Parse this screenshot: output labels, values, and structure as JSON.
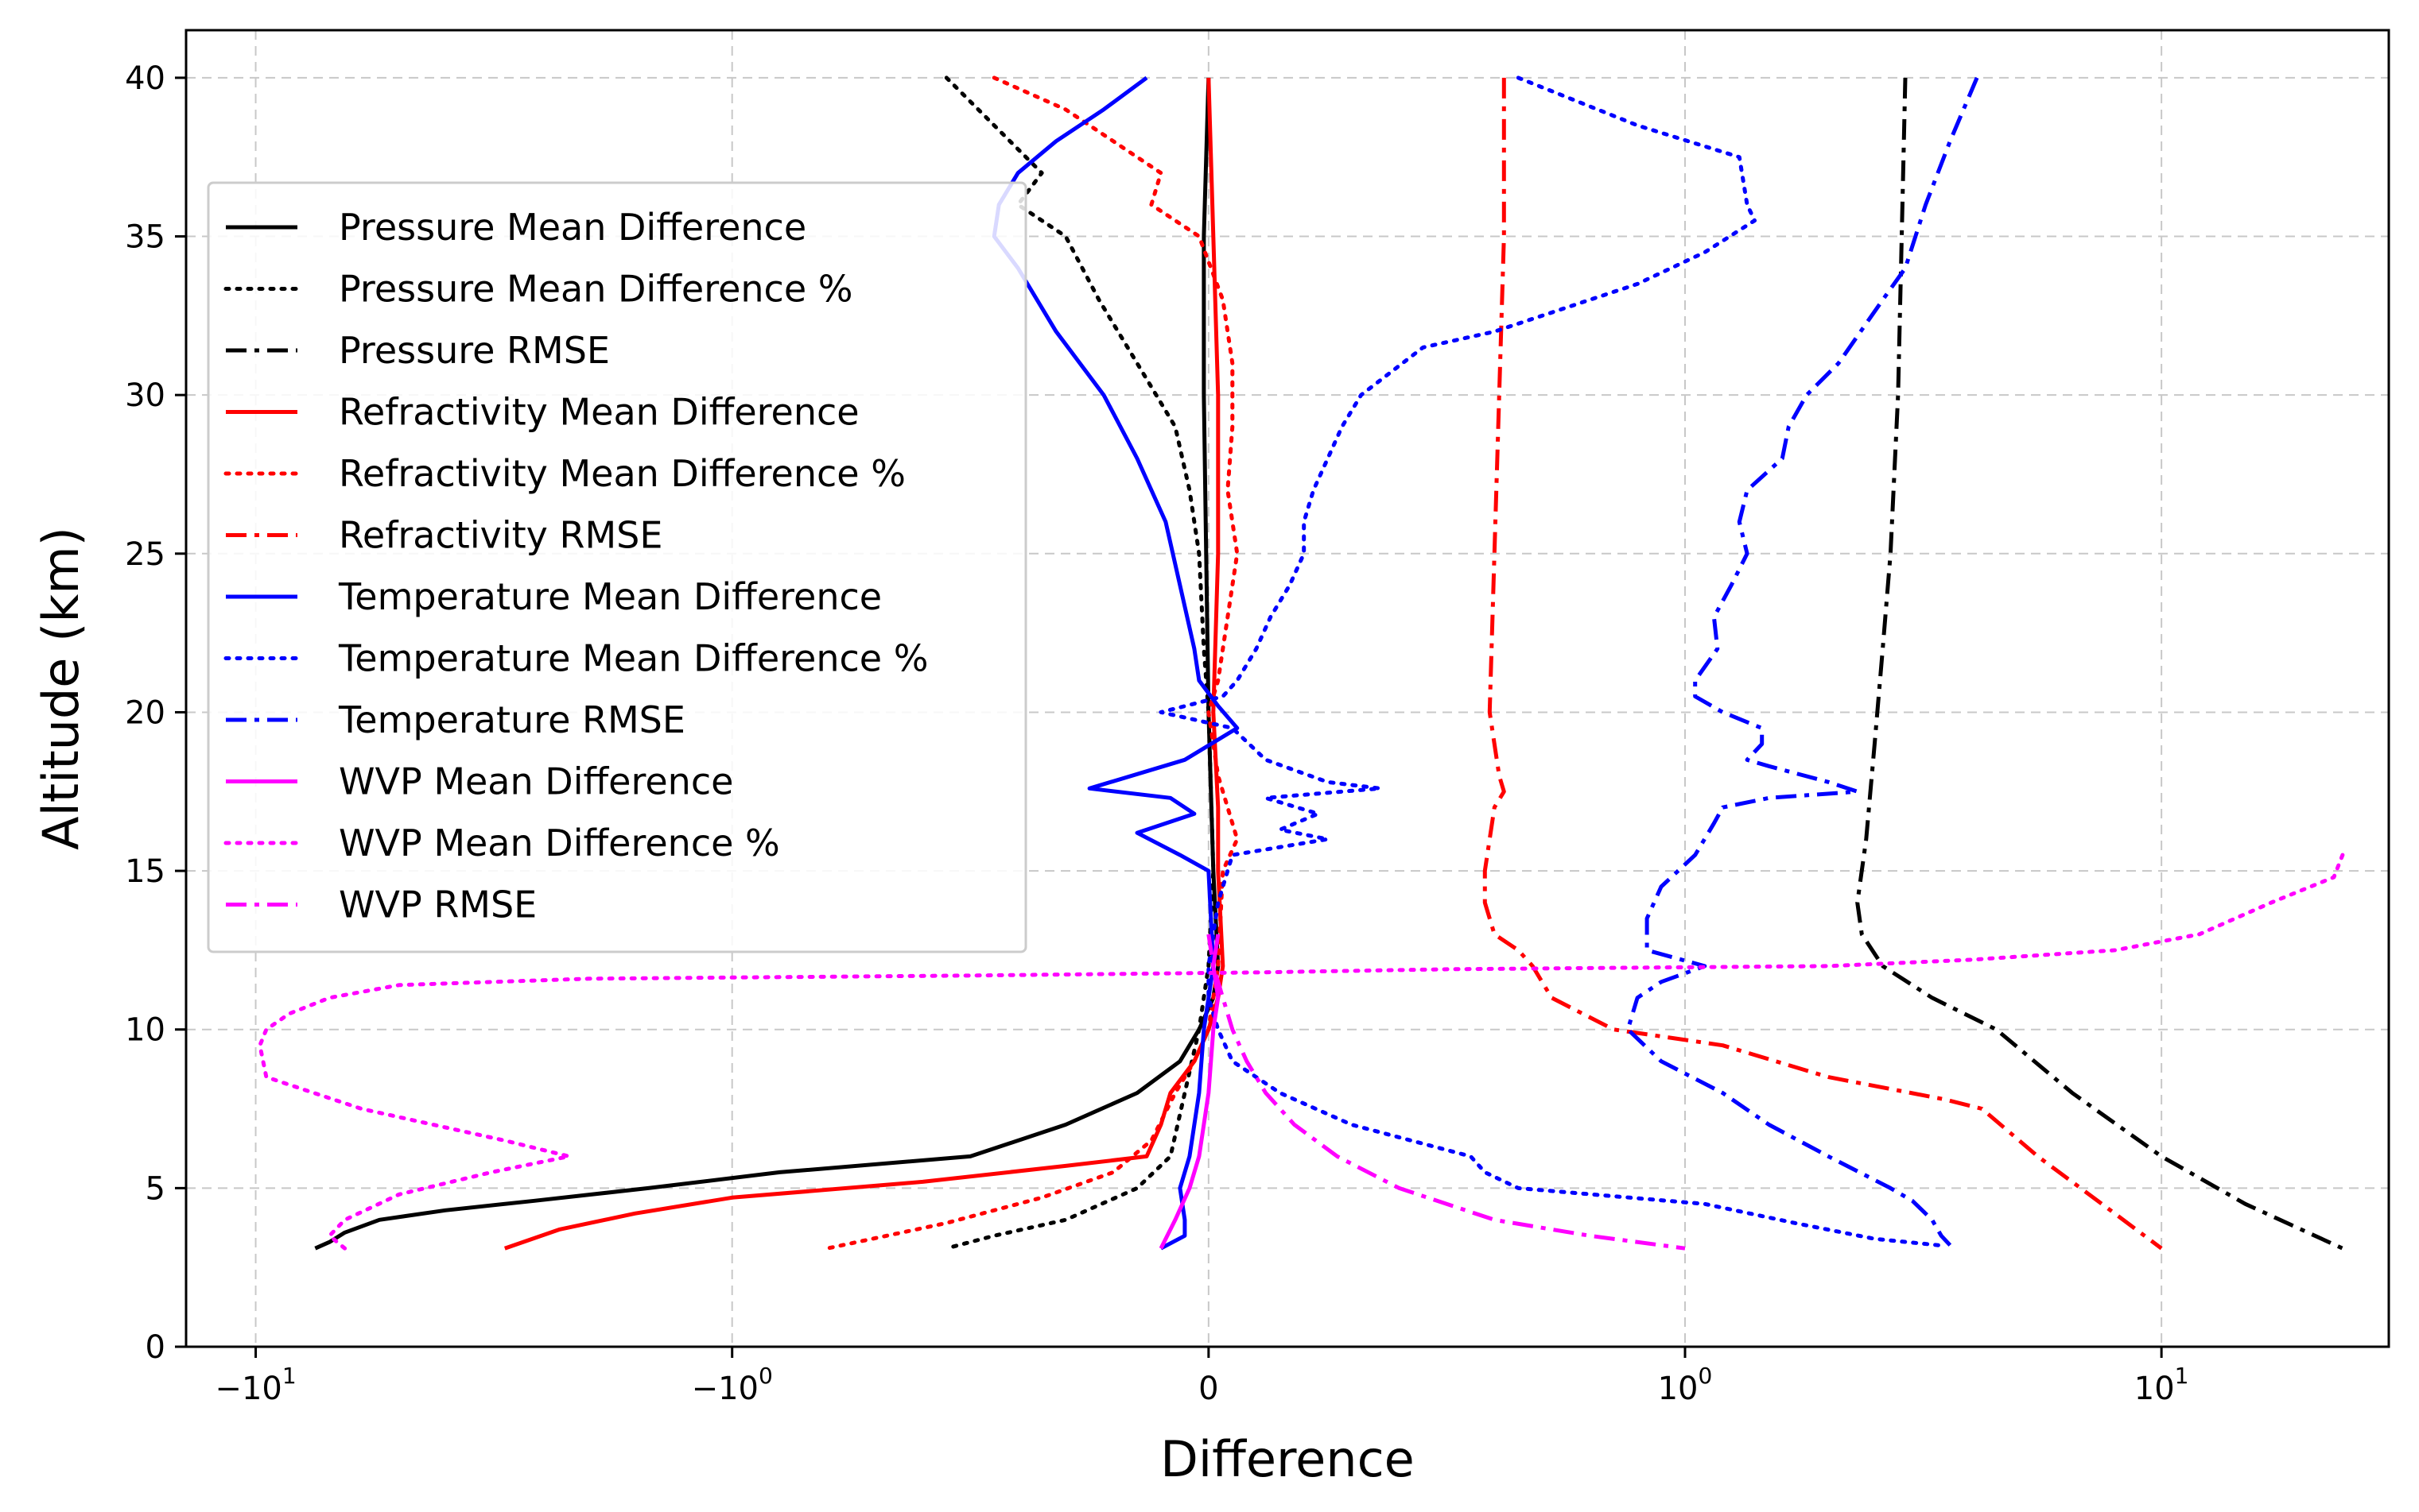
{
  "chart_data": {
    "type": "line",
    "xlabel": "Difference",
    "ylabel": "Altitude (km)",
    "x_scale": "symlog",
    "x_linthresh": 1,
    "xlim": [
      -14,
      30
    ],
    "ylim": [
      0,
      41.5
    ],
    "grid": true,
    "legend_position": "upper-left",
    "x_ticks": [
      {
        "value": -10,
        "base": "−10",
        "exp": "1"
      },
      {
        "value": -1,
        "base": "−10",
        "exp": "0"
      },
      {
        "value": 0,
        "base": "0",
        "exp": ""
      },
      {
        "value": 1,
        "base": "10",
        "exp": "0"
      },
      {
        "value": 10,
        "base": "10",
        "exp": "1"
      }
    ],
    "y_ticks": [
      0,
      5,
      10,
      15,
      20,
      25,
      30,
      35,
      40
    ],
    "series": [
      {
        "name": "Pressure Mean Difference",
        "color": "#000000",
        "style": "solid",
        "points": [
          [
            0.0,
            40
          ],
          [
            -0.01,
            35
          ],
          [
            -0.01,
            30
          ],
          [
            -0.005,
            25
          ],
          [
            0.0,
            20
          ],
          [
            0.01,
            15
          ],
          [
            0.02,
            12
          ],
          [
            0.01,
            11
          ],
          [
            -0.02,
            10
          ],
          [
            -0.06,
            9
          ],
          [
            -0.15,
            8
          ],
          [
            -0.3,
            7
          ],
          [
            -0.5,
            6
          ],
          [
            -0.9,
            5.5
          ],
          [
            -1.5,
            5
          ],
          [
            -2.6,
            4.6
          ],
          [
            -4.0,
            4.3
          ],
          [
            -5.5,
            4.0
          ],
          [
            -6.5,
            3.6
          ],
          [
            -7.0,
            3.3
          ],
          [
            -7.5,
            3.1
          ]
        ]
      },
      {
        "name": "Pressure Mean Difference %",
        "color": "#000000",
        "style": "dotted",
        "points": [
          [
            -0.55,
            40
          ],
          [
            -0.45,
            38.5
          ],
          [
            -0.35,
            37
          ],
          [
            -0.4,
            36
          ],
          [
            -0.3,
            35
          ],
          [
            -0.23,
            33
          ],
          [
            -0.15,
            31
          ],
          [
            -0.07,
            29
          ],
          [
            -0.04,
            27
          ],
          [
            -0.02,
            25
          ],
          [
            -0.01,
            22
          ],
          [
            0.0,
            20
          ],
          [
            0.01,
            15
          ],
          [
            0.0,
            12
          ],
          [
            -0.02,
            10
          ],
          [
            -0.05,
            8
          ],
          [
            -0.08,
            6
          ],
          [
            -0.15,
            5
          ],
          [
            -0.3,
            4
          ],
          [
            -0.45,
            3.5
          ],
          [
            -0.55,
            3.1
          ]
        ]
      },
      {
        "name": "Pressure RMSE",
        "color": "#000000",
        "style": "dashdot",
        "points": [
          [
            2.9,
            40
          ],
          [
            2.85,
            35
          ],
          [
            2.8,
            30
          ],
          [
            2.7,
            25
          ],
          [
            2.6,
            22
          ],
          [
            2.5,
            19
          ],
          [
            2.4,
            16
          ],
          [
            2.3,
            14
          ],
          [
            2.35,
            13
          ],
          [
            2.6,
            12
          ],
          [
            3.3,
            11
          ],
          [
            4.5,
            10
          ],
          [
            6.5,
            8
          ],
          [
            10,
            6
          ],
          [
            15,
            4.5
          ],
          [
            24,
            3.1
          ]
        ]
      },
      {
        "name": "Refractivity Mean Difference",
        "color": "#ff0000",
        "style": "solid",
        "points": [
          [
            0.0,
            40
          ],
          [
            0.01,
            35
          ],
          [
            0.02,
            30
          ],
          [
            0.02,
            25
          ],
          [
            0.01,
            20
          ],
          [
            0.02,
            17
          ],
          [
            0.02,
            15
          ],
          [
            0.03,
            12
          ],
          [
            0.02,
            11
          ],
          [
            0.0,
            10
          ],
          [
            -0.03,
            9
          ],
          [
            -0.08,
            8
          ],
          [
            -0.1,
            7
          ],
          [
            -0.13,
            6
          ],
          [
            -0.3,
            5.7
          ],
          [
            -0.6,
            5.2
          ],
          [
            -1.0,
            4.7
          ],
          [
            -1.6,
            4.2
          ],
          [
            -2.3,
            3.7
          ],
          [
            -3.0,
            3.1
          ]
        ]
      },
      {
        "name": "Refractivity Mean Difference %",
        "color": "#ff0000",
        "style": "dotted",
        "points": [
          [
            -0.45,
            40
          ],
          [
            -0.3,
            39
          ],
          [
            -0.2,
            38
          ],
          [
            -0.1,
            37
          ],
          [
            -0.12,
            36
          ],
          [
            -0.02,
            35
          ],
          [
            0.03,
            33
          ],
          [
            0.05,
            31
          ],
          [
            0.05,
            29
          ],
          [
            0.04,
            27
          ],
          [
            0.06,
            25
          ],
          [
            0.04,
            23
          ],
          [
            0.02,
            21
          ],
          [
            0.0,
            20
          ],
          [
            0.02,
            18
          ],
          [
            0.06,
            16
          ],
          [
            0.03,
            15
          ],
          [
            0.02,
            12
          ],
          [
            0.0,
            10
          ],
          [
            -0.03,
            9
          ],
          [
            -0.07,
            8
          ],
          [
            -0.12,
            6.5
          ],
          [
            -0.2,
            5.5
          ],
          [
            -0.35,
            4.7
          ],
          [
            -0.55,
            3.9
          ],
          [
            -0.8,
            3.1
          ]
        ]
      },
      {
        "name": "Refractivity RMSE",
        "color": "#ff0000",
        "style": "dashdot",
        "points": [
          [
            0.62,
            40
          ],
          [
            0.62,
            35
          ],
          [
            0.61,
            30
          ],
          [
            0.6,
            25
          ],
          [
            0.59,
            20
          ],
          [
            0.61,
            18
          ],
          [
            0.62,
            17.5
          ],
          [
            0.6,
            17
          ],
          [
            0.58,
            15
          ],
          [
            0.58,
            14
          ],
          [
            0.6,
            13
          ],
          [
            0.65,
            12.5
          ],
          [
            0.68,
            12
          ],
          [
            0.72,
            11
          ],
          [
            0.85,
            10
          ],
          [
            1.2,
            9.5
          ],
          [
            2.0,
            8.5
          ],
          [
            3.5,
            7.8
          ],
          [
            4.2,
            7.5
          ],
          [
            5.5,
            6
          ],
          [
            7.5,
            4.5
          ],
          [
            10,
            3.1
          ]
        ]
      },
      {
        "name": "Temperature Mean Difference",
        "color": "#0000ff",
        "style": "solid",
        "points": [
          [
            -0.13,
            40
          ],
          [
            -0.22,
            39
          ],
          [
            -0.32,
            38
          ],
          [
            -0.4,
            37
          ],
          [
            -0.44,
            36
          ],
          [
            -0.45,
            35
          ],
          [
            -0.4,
            34
          ],
          [
            -0.32,
            32
          ],
          [
            -0.22,
            30
          ],
          [
            -0.15,
            28
          ],
          [
            -0.09,
            26
          ],
          [
            -0.06,
            24
          ],
          [
            -0.03,
            22
          ],
          [
            -0.02,
            21
          ],
          [
            0.02,
            20.2
          ],
          [
            0.06,
            19.5
          ],
          [
            -0.05,
            18.5
          ],
          [
            -0.25,
            17.6
          ],
          [
            -0.08,
            17.3
          ],
          [
            -0.03,
            16.8
          ],
          [
            -0.15,
            16.2
          ],
          [
            -0.06,
            15.5
          ],
          [
            0.0,
            15
          ],
          [
            0.01,
            12
          ],
          [
            -0.01,
            10
          ],
          [
            -0.02,
            8
          ],
          [
            -0.04,
            6
          ],
          [
            -0.06,
            5
          ],
          [
            -0.05,
            4
          ],
          [
            -0.05,
            3.5
          ],
          [
            -0.1,
            3.1
          ]
        ]
      },
      {
        "name": "Temperature Mean Difference %",
        "color": "#0000ff",
        "style": "dotted",
        "points": [
          [
            0.65,
            40
          ],
          [
            0.9,
            38.5
          ],
          [
            1.3,
            37.5
          ],
          [
            1.35,
            36
          ],
          [
            1.4,
            35.5
          ],
          [
            1.1,
            34.5
          ],
          [
            0.9,
            33.5
          ],
          [
            0.6,
            32
          ],
          [
            0.45,
            31.5
          ],
          [
            0.32,
            30
          ],
          [
            0.28,
            29
          ],
          [
            0.22,
            27
          ],
          [
            0.2,
            26
          ],
          [
            0.2,
            25
          ],
          [
            0.17,
            24
          ],
          [
            0.13,
            23
          ],
          [
            0.1,
            22
          ],
          [
            0.06,
            21
          ],
          [
            0.03,
            20.5
          ],
          [
            -0.1,
            20
          ],
          [
            0.05,
            19.5
          ],
          [
            0.12,
            18.5
          ],
          [
            0.25,
            17.8
          ],
          [
            0.36,
            17.6
          ],
          [
            0.12,
            17.3
          ],
          [
            0.23,
            16.8
          ],
          [
            0.15,
            16.3
          ],
          [
            0.25,
            16
          ],
          [
            0.05,
            15.5
          ],
          [
            0.02,
            14
          ],
          [
            0.0,
            12
          ],
          [
            0.0,
            11
          ],
          [
            0.02,
            10
          ],
          [
            0.05,
            9
          ],
          [
            0.15,
            8
          ],
          [
            0.3,
            7
          ],
          [
            0.55,
            6
          ],
          [
            0.58,
            5.5
          ],
          [
            0.65,
            5
          ],
          [
            1.1,
            4.5
          ],
          [
            1.7,
            3.9
          ],
          [
            2.5,
            3.4
          ],
          [
            3.4,
            3.2
          ]
        ]
      },
      {
        "name": "Temperature RMSE",
        "color": "#0000ff",
        "style": "dashdot",
        "points": [
          [
            4.1,
            40
          ],
          [
            3.6,
            38
          ],
          [
            3.2,
            36
          ],
          [
            2.9,
            34
          ],
          [
            2.6,
            33
          ],
          [
            2.1,
            31
          ],
          [
            1.8,
            30
          ],
          [
            1.65,
            29
          ],
          [
            1.6,
            28
          ],
          [
            1.35,
            27
          ],
          [
            1.3,
            26
          ],
          [
            1.35,
            25
          ],
          [
            1.25,
            24
          ],
          [
            1.15,
            23
          ],
          [
            1.17,
            22
          ],
          [
            1.05,
            21
          ],
          [
            1.05,
            20.5
          ],
          [
            1.2,
            20
          ],
          [
            1.45,
            19.5
          ],
          [
            1.45,
            19
          ],
          [
            1.35,
            18.5
          ],
          [
            1.5,
            18.3
          ],
          [
            2.0,
            17.8
          ],
          [
            2.3,
            17.5
          ],
          [
            1.5,
            17.3
          ],
          [
            1.2,
            17
          ],
          [
            1.15,
            16.5
          ],
          [
            1.05,
            15.5
          ],
          [
            0.95,
            14.5
          ],
          [
            0.92,
            13.5
          ],
          [
            0.92,
            12.5
          ],
          [
            1.1,
            12
          ],
          [
            0.95,
            11.5
          ],
          [
            0.9,
            11
          ],
          [
            0.88,
            10
          ],
          [
            0.95,
            9
          ],
          [
            1.2,
            8
          ],
          [
            1.5,
            7
          ],
          [
            2.0,
            6
          ],
          [
            2.7,
            5
          ],
          [
            3.0,
            4.6
          ],
          [
            3.3,
            4
          ],
          [
            3.45,
            3.5
          ],
          [
            3.6,
            3.2
          ]
        ]
      },
      {
        "name": "WVP Mean Difference",
        "color": "#ff00ff",
        "style": "solid",
        "points": [
          [
            0.02,
            13
          ],
          [
            0.01,
            12
          ],
          [
            0.02,
            11
          ],
          [
            0.01,
            10
          ],
          [
            0.0,
            8
          ],
          [
            -0.02,
            6
          ],
          [
            -0.04,
            5
          ],
          [
            -0.07,
            4
          ],
          [
            -0.1,
            3.1
          ]
        ]
      },
      {
        "name": "WVP Mean Difference %",
        "color": "#ff00ff",
        "style": "dotted",
        "points": [
          [
            24,
            15.5
          ],
          [
            23,
            14.8
          ],
          [
            17,
            14
          ],
          [
            12,
            13
          ],
          [
            8,
            12.5
          ],
          [
            4,
            12.2
          ],
          [
            2,
            12.0
          ],
          [
            0.5,
            11.9
          ],
          [
            0.1,
            11.8
          ],
          [
            -0.5,
            11.7
          ],
          [
            -2,
            11.6
          ],
          [
            -5,
            11.4
          ],
          [
            -7,
            11
          ],
          [
            -8.5,
            10.5
          ],
          [
            -9.5,
            10
          ],
          [
            -9.8,
            9.5
          ],
          [
            -9.5,
            8.5
          ],
          [
            -6,
            7.5
          ],
          [
            -3,
            6.5
          ],
          [
            -2.2,
            6
          ],
          [
            -3.2,
            5.5
          ],
          [
            -5,
            4.8
          ],
          [
            -6.5,
            4
          ],
          [
            -7,
            3.5
          ],
          [
            -6.5,
            3.1
          ]
        ]
      },
      {
        "name": "WVP RMSE",
        "color": "#ff00ff",
        "style": "dashdot",
        "points": [
          [
            0.0,
            13
          ],
          [
            0.01,
            12
          ],
          [
            0.03,
            11
          ],
          [
            0.05,
            10
          ],
          [
            0.08,
            9
          ],
          [
            0.12,
            8
          ],
          [
            0.18,
            7
          ],
          [
            0.27,
            6
          ],
          [
            0.4,
            5
          ],
          [
            0.6,
            4
          ],
          [
            0.8,
            3.5
          ],
          [
            1.0,
            3.1
          ]
        ]
      }
    ]
  }
}
